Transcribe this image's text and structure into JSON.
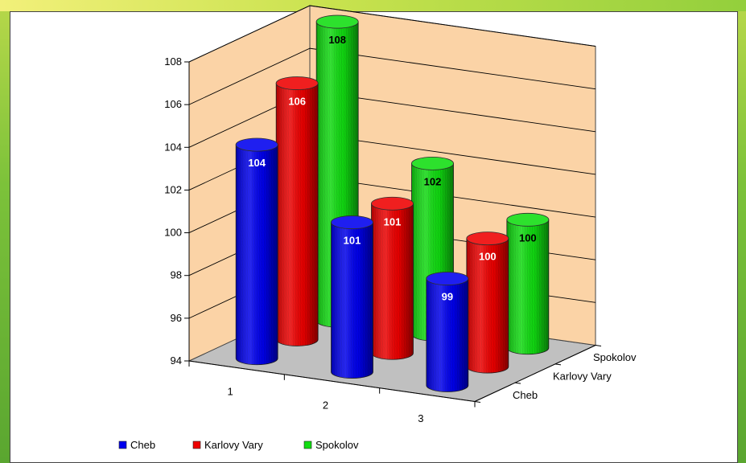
{
  "chart_data": {
    "type": "bar",
    "subtype": "3d-cylinder",
    "title": "",
    "xlabel": "",
    "ylabel": "",
    "categories": [
      "1",
      "2",
      "3"
    ],
    "series": [
      {
        "name": "Cheb",
        "color": "#0000ee",
        "label_color": "#ffffff",
        "values": [
          104,
          101,
          99
        ]
      },
      {
        "name": "Karlovy Vary",
        "color": "#ee0000",
        "label_color": "#ffffff",
        "values": [
          106,
          101,
          100
        ]
      },
      {
        "name": "Spokolov",
        "color": "#11dd11",
        "label_color": "#000000",
        "values": [
          108,
          102,
          100
        ]
      }
    ],
    "ylim": [
      94,
      108
    ],
    "yticks": [
      94,
      96,
      98,
      100,
      102,
      104,
      106,
      108
    ],
    "grid": true,
    "legend_position": "bottom-left",
    "wall_color": "#fbd3a6",
    "floor_color": "#c0c0c0"
  }
}
